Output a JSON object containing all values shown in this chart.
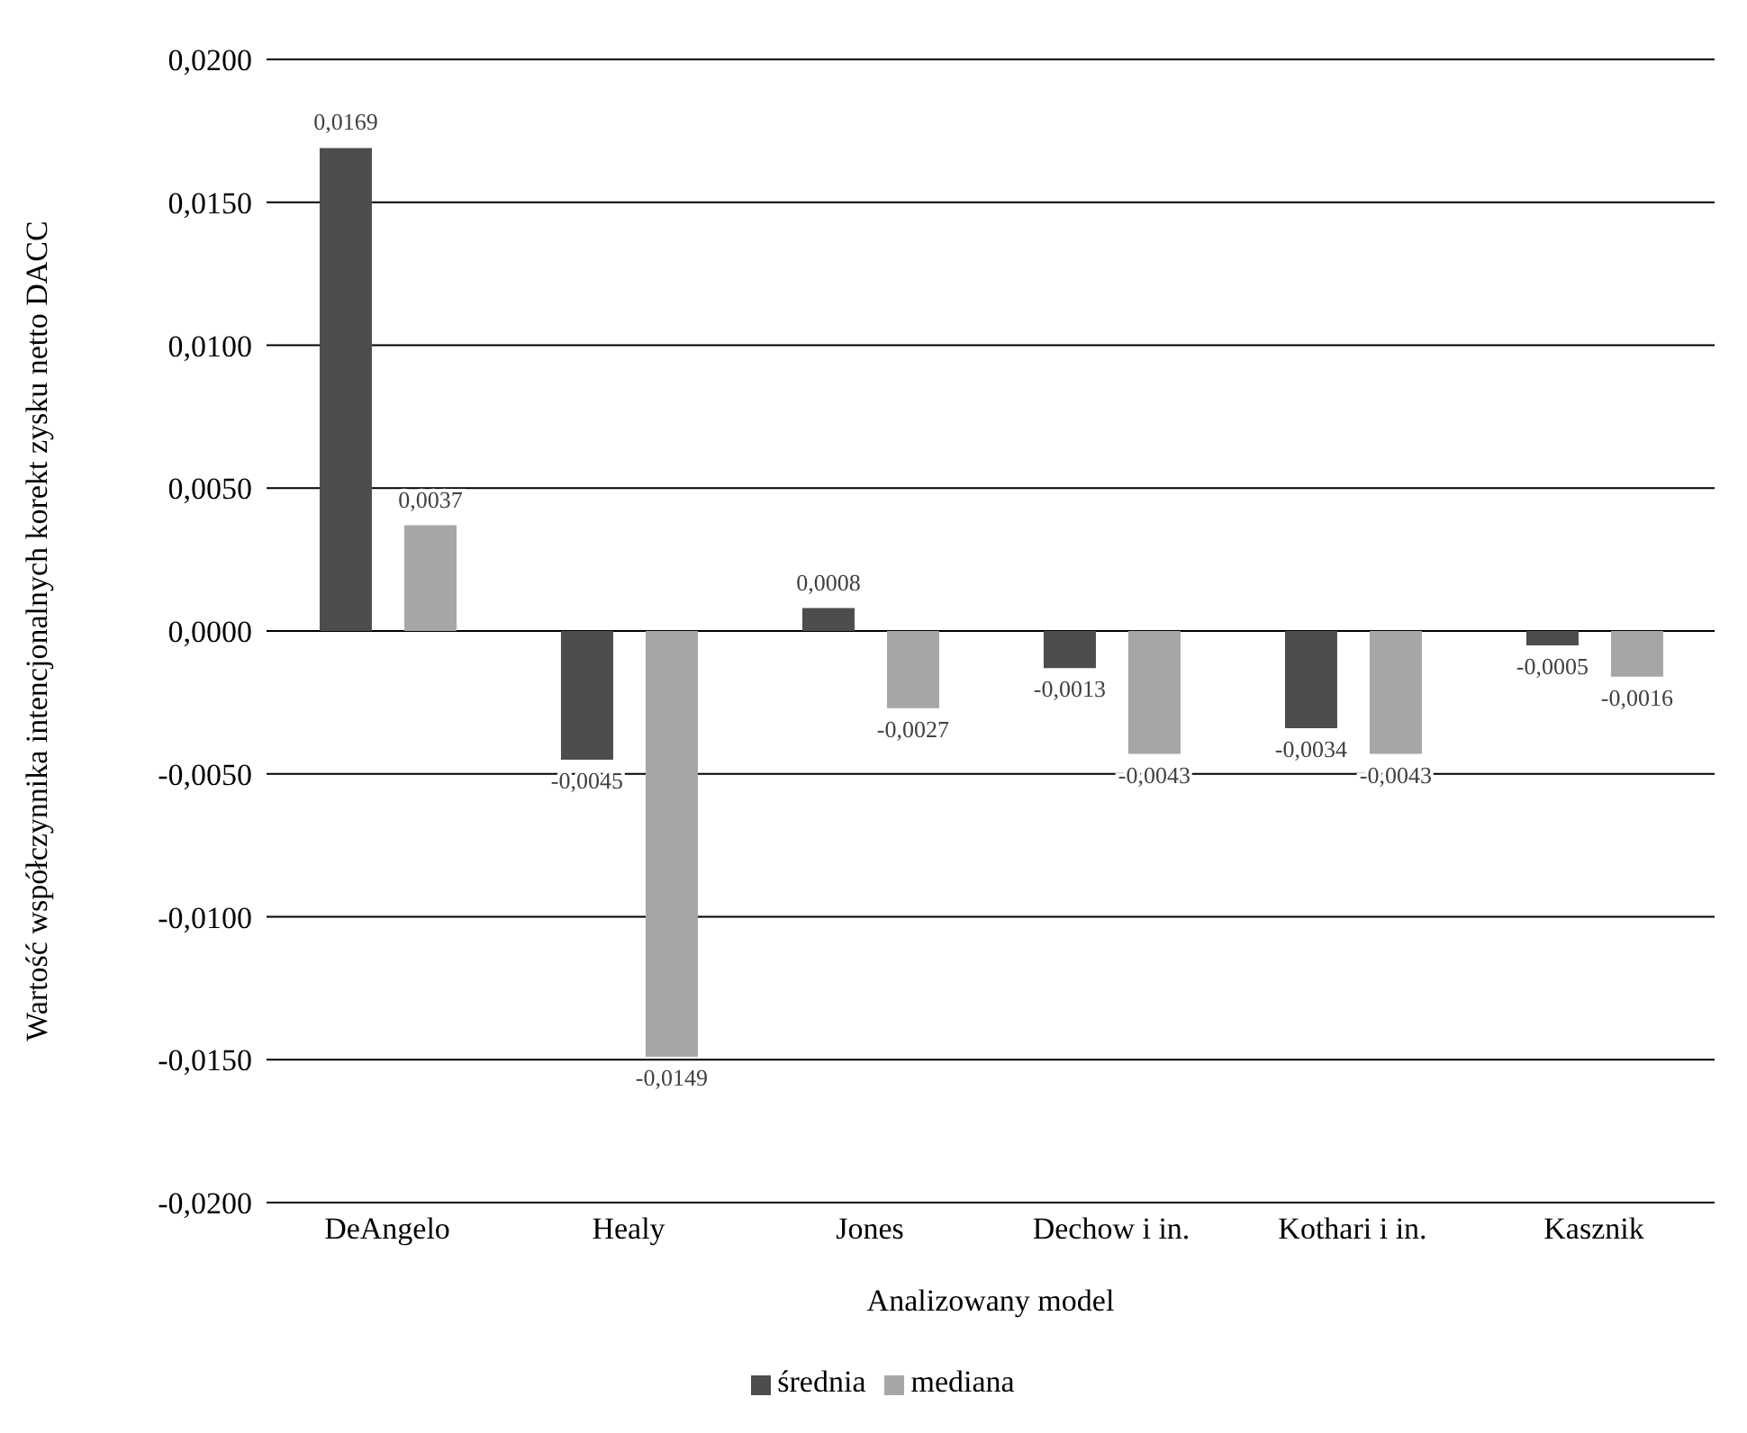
{
  "chart_data": {
    "type": "bar",
    "xlabel": "Analizowany model",
    "ylabel": "Wartość współczynnika intencjonalnych korekt zysku netto DACC",
    "categories": [
      "DeAngelo",
      "Healy",
      "Jones",
      "Dechow i in.",
      "Kothari i in.",
      "Kasznik"
    ],
    "series": [
      {
        "name": "średnia",
        "color": "#4d4d4d",
        "values": [
          0.0169,
          -0.0045,
          0.0008,
          -0.0013,
          -0.0034,
          -0.0005
        ],
        "value_labels": [
          "0,0169",
          "-0,0045",
          "0,0008",
          "-0,0013",
          "-0,0034",
          "-0,0005"
        ]
      },
      {
        "name": "mediana",
        "color": "#a6a6a6",
        "values": [
          0.0037,
          -0.0149,
          -0.0027,
          -0.0043,
          -0.0043,
          -0.0016
        ],
        "value_labels": [
          "0,0037",
          "-0,0149",
          "-0,0027",
          "-0,0043",
          "-0,0043",
          "-0,0016"
        ]
      }
    ],
    "ylim": [
      -0.02,
      0.02
    ],
    "yticks": [
      {
        "value": -0.02,
        "label": "-0,0200"
      },
      {
        "value": -0.015,
        "label": "-0,0150"
      },
      {
        "value": -0.01,
        "label": "-0,0100"
      },
      {
        "value": -0.005,
        "label": "-0,0050"
      },
      {
        "value": 0,
        "label": "0,0000"
      },
      {
        "value": 0.005,
        "label": "0,0050"
      },
      {
        "value": 0.01,
        "label": "0,0100"
      },
      {
        "value": 0.015,
        "label": "0,0150"
      },
      {
        "value": 0.02,
        "label": "0,0200"
      }
    ],
    "grid": "y",
    "legend": "bottom"
  }
}
